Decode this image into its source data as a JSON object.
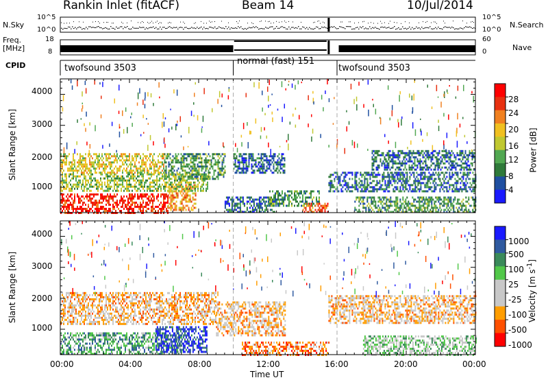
{
  "header": {
    "station": "Rankin Inlet (fitACF)",
    "beam": "Beam 14",
    "date": "10/Jul/2014"
  },
  "housekeeping": {
    "nsky_label": "N.Sky",
    "nsky_ticks": [
      "10^5",
      "10^0"
    ],
    "nsearch_label": "N.Search",
    "nsearch_right_ticks": [
      "10^5",
      "10^0"
    ],
    "freq_label": "Freq.",
    "freq_unit": "[MHz]",
    "freq_ticks": [
      "18",
      "8"
    ],
    "nave_label": "Nave",
    "nave_ticks": [
      "60",
      "0"
    ],
    "cpid_label": "CPID",
    "modes": [
      {
        "name": "twofsound 3503",
        "start_h": 0,
        "end_h": 10
      },
      {
        "name": "normal (fast) 151",
        "start_h": 10,
        "end_h": 16
      },
      {
        "name": "twofsound 3503",
        "start_h": 16,
        "end_h": 24
      }
    ]
  },
  "colors": {
    "power": [
      "#1a1aff",
      "#1f4fa0",
      "#2f7a3a",
      "#52a852",
      "#c0c830",
      "#f0c020",
      "#f08020",
      "#e83010",
      "#ff0000"
    ],
    "velocity": [
      "#ff0000",
      "#ff5000",
      "#ff9d00",
      "#c8c8c8",
      "#c8c8c8",
      "#52c84a",
      "#3a8a5a",
      "#2f5aa0",
      "#1a1aff"
    ]
  },
  "chart_data": [
    {
      "type": "heatmap",
      "name": "power",
      "colorbar_label": "Power [dB]",
      "colorbar_ticks": [
        "28",
        "24",
        "20",
        "16",
        "12",
        "8",
        "4"
      ],
      "ylabel": "Slant Range [km]",
      "ylim": [
        180,
        4500
      ],
      "yticks": [
        1000,
        2000,
        3000,
        4000
      ],
      "xlim": [
        0,
        24
      ],
      "xticks": [
        "00:00",
        "04:00",
        "08:00",
        "12:00",
        "16:00",
        "20:00",
        "00:00"
      ],
      "mode_change_markers_h": [
        10,
        16
      ],
      "regions": [
        {
          "t0": 0.0,
          "t1": 6.2,
          "r0": 200,
          "r1": 800,
          "level": 8
        },
        {
          "t0": 6.2,
          "t1": 7.8,
          "r0": 300,
          "r1": 1100,
          "level": 6
        },
        {
          "t0": 0.0,
          "t1": 8.5,
          "r0": 900,
          "r1": 1450,
          "level": 4
        },
        {
          "t0": 0.0,
          "t1": 6.0,
          "r0": 1500,
          "r1": 2100,
          "level": 5
        },
        {
          "t0": 6.0,
          "t1": 9.5,
          "r0": 1300,
          "r1": 2100,
          "level": 3
        },
        {
          "t0": 9.5,
          "t1": 12.5,
          "r0": 200,
          "r1": 700,
          "level": 2
        },
        {
          "t0": 10.0,
          "t1": 13.0,
          "r0": 1500,
          "r1": 2100,
          "level": 2
        },
        {
          "t0": 12.0,
          "t1": 15.0,
          "r0": 400,
          "r1": 900,
          "level": 3
        },
        {
          "t0": 14.0,
          "t1": 15.5,
          "r0": 200,
          "r1": 500,
          "level": 7
        },
        {
          "t0": 15.5,
          "t1": 24.0,
          "r0": 900,
          "r1": 1500,
          "level": 2
        },
        {
          "t0": 17.0,
          "t1": 24.0,
          "r0": 200,
          "r1": 700,
          "level": 3
        },
        {
          "t0": 18.0,
          "t1": 24.0,
          "r0": 1600,
          "r1": 2200,
          "level": 2
        }
      ]
    },
    {
      "type": "heatmap",
      "name": "velocity",
      "colorbar_label": "Velocity [m s^-1]",
      "colorbar_ticks": [
        "1000",
        "500",
        "100",
        "25",
        "-25",
        "-100",
        "-500",
        "-1000"
      ],
      "ylabel": "Slant Range [km]",
      "xlabel": "Time UT",
      "ylim": [
        180,
        4500
      ],
      "yticks": [
        1000,
        2000,
        3000,
        4000
      ],
      "xlim": [
        0,
        24
      ],
      "xticks": [
        "00:00",
        "04:00",
        "08:00",
        "12:00",
        "16:00",
        "20:00",
        "00:00"
      ],
      "mode_change_markers_h": [
        10,
        16
      ],
      "regions": [
        {
          "t0": 0.0,
          "t1": 7.0,
          "r0": 200,
          "r1": 900,
          "level": 6
        },
        {
          "t0": 5.5,
          "t1": 8.5,
          "r0": 300,
          "r1": 1100,
          "level": 8
        },
        {
          "t0": 0.0,
          "t1": 9.0,
          "r0": 1200,
          "r1": 2200,
          "level": 3
        },
        {
          "t0": 9.0,
          "t1": 13.0,
          "r0": 800,
          "r1": 1900,
          "level": 3
        },
        {
          "t0": 10.5,
          "t1": 15.5,
          "r0": 200,
          "r1": 600,
          "level": 2
        },
        {
          "t0": 15.5,
          "t1": 24.0,
          "r0": 1200,
          "r1": 2100,
          "level": 3
        },
        {
          "t0": 17.5,
          "t1": 24.0,
          "r0": 200,
          "r1": 800,
          "level": 5
        }
      ]
    }
  ]
}
